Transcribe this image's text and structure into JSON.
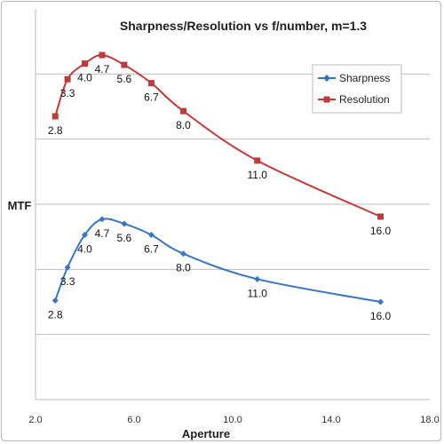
{
  "chart_data": {
    "type": "line",
    "title": "Sharpness/Resolution vs f/number, m=1.3",
    "xlabel": "Aperture",
    "ylabel": "MTF",
    "xlim": [
      2.0,
      18.0
    ],
    "x_ticks": [
      "2.0",
      "6.0",
      "10.0",
      "14.0",
      "18.0"
    ],
    "y_gridlines": 5,
    "grid": "horizontal",
    "y_tick_labels": false,
    "legend": "top-right",
    "series": [
      {
        "name": "Sharpness",
        "color": "#3b74c4",
        "marker": "diamond",
        "x": [
          2.8,
          3.3,
          4.0,
          4.7,
          5.6,
          6.7,
          8.0,
          11.0,
          16.0
        ],
        "y": [
          1.52,
          2.03,
          2.53,
          2.77,
          2.7,
          2.53,
          2.24,
          1.85,
          1.5
        ],
        "labels": [
          "2.8",
          "3.3",
          "4.0",
          "4.7",
          "5.6",
          "6.7",
          "8.0",
          "11.0",
          "16.0"
        ]
      },
      {
        "name": "Resolution",
        "color": "#c0393b",
        "marker": "square",
        "x": [
          2.8,
          3.3,
          4.0,
          4.7,
          5.6,
          6.7,
          8.0,
          11.0,
          16.0
        ],
        "y": [
          4.35,
          4.92,
          5.16,
          5.29,
          5.14,
          4.86,
          4.43,
          3.67,
          2.81
        ],
        "labels": [
          "2.8",
          "3.3",
          "4.0",
          "4.7",
          "5.6",
          "6.7",
          "8.0",
          "11.0",
          "16.0"
        ]
      }
    ]
  }
}
